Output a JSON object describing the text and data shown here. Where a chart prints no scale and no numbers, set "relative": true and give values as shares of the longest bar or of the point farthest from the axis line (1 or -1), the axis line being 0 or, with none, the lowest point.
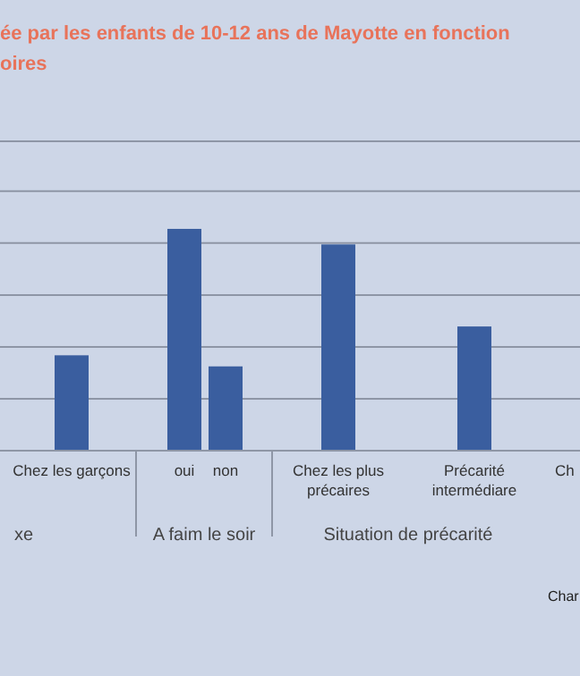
{
  "chart_data": {
    "type": "bar",
    "title": "ée par les enfants de 10-12 ans de Mayotte en fonction\noires",
    "categories": [
      "Chez les garçons",
      "oui",
      "non",
      "Chez les plus\nprécaires",
      "Précarité\nintermédiare",
      "Ch"
    ],
    "values": [
      0.43,
      1,
      0.38,
      0.93,
      0.56,
      null
    ],
    "color": "#3a5e9f",
    "relative": true,
    "grid": "y",
    "annotations": [
      "xe",
      "A faim le soir",
      "Situation de précarité",
      "Char"
    ]
  }
}
